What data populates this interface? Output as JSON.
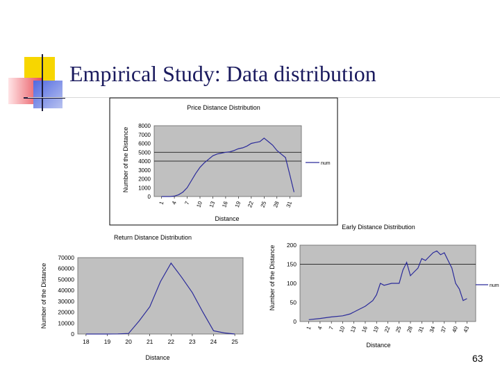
{
  "slide": {
    "title": "Empirical Study: Data distribution",
    "page_number": "63"
  },
  "colors": {
    "title": "#1a1a5e",
    "plot_bg": "#c0c0c0",
    "line": "#2a2a9a",
    "deco_yellow": "#f7d600",
    "deco_red": "#e8505a",
    "deco_blue": "#3c50c8"
  },
  "chart_data": [
    {
      "id": "price",
      "type": "line",
      "title": "Price Distance Distribution",
      "xlabel": "Distance",
      "ylabel": "Number of the Distance",
      "legend": "num",
      "legend_position": "right",
      "ylim": [
        0,
        8000
      ],
      "yticks": [
        "8000",
        "7000",
        "6000",
        "5000",
        "4000",
        "3000",
        "2000",
        "1000",
        "0"
      ],
      "xticks": [
        "1",
        "4",
        "7",
        "10",
        "13",
        "16",
        "19",
        "22",
        "25",
        "28",
        "31"
      ],
      "x": [
        1,
        2,
        3,
        4,
        5,
        6,
        7,
        8,
        9,
        10,
        11,
        12,
        13,
        14,
        15,
        16,
        17,
        18,
        19,
        20,
        21,
        22,
        23,
        24,
        25,
        26,
        27,
        28,
        29,
        30,
        31,
        32
      ],
      "values": [
        0,
        0,
        0,
        50,
        200,
        500,
        1000,
        1800,
        2600,
        3300,
        3800,
        4200,
        4600,
        4800,
        4900,
        5000,
        5050,
        5200,
        5400,
        5500,
        5700,
        6000,
        6100,
        6200,
        6600,
        6200,
        5800,
        5200,
        4800,
        4400,
        2500,
        500
      ]
    },
    {
      "id": "return",
      "type": "line",
      "title": "Return Distance Distribution",
      "xlabel": "Distance",
      "ylabel": "Number of the Distance",
      "ylim": [
        0,
        70000
      ],
      "yticks": [
        "70000",
        "60000",
        "50000",
        "40000",
        "30000",
        "20000",
        "10000",
        "0"
      ],
      "xticks": [
        "18",
        "19",
        "20",
        "21",
        "22",
        "23",
        "24",
        "25"
      ],
      "x": [
        18,
        18.5,
        19,
        19.5,
        20,
        20.5,
        21,
        21.5,
        22,
        22.5,
        23,
        23.5,
        24,
        24.5,
        25
      ],
      "values": [
        0,
        0,
        0,
        100,
        500,
        12000,
        25000,
        48000,
        65000,
        52000,
        38000,
        20000,
        3000,
        1000,
        0
      ]
    },
    {
      "id": "early",
      "type": "line",
      "title": "Early Distance Distribution",
      "xlabel": "Distance",
      "ylabel": "Number of the Distance",
      "legend": "num",
      "legend_position": "right",
      "ylim": [
        0,
        200
      ],
      "yticks": [
        "200",
        "150",
        "100",
        "50",
        "0"
      ],
      "xticks": [
        "1",
        "4",
        "7",
        "10",
        "13",
        "16",
        "19",
        "22",
        "25",
        "28",
        "31",
        "34",
        "37",
        "40",
        "43"
      ],
      "x": [
        1,
        4,
        7,
        10,
        12,
        14,
        16,
        18,
        19,
        20,
        21,
        23,
        25,
        26,
        27,
        28,
        29,
        30,
        31,
        32,
        33,
        34,
        35,
        36,
        37,
        38,
        39,
        40,
        41,
        42,
        43
      ],
      "values": [
        5,
        8,
        12,
        15,
        20,
        30,
        40,
        55,
        70,
        100,
        95,
        100,
        100,
        135,
        155,
        120,
        130,
        140,
        165,
        160,
        170,
        180,
        185,
        175,
        180,
        160,
        140,
        100,
        85,
        55,
        60
      ]
    }
  ]
}
